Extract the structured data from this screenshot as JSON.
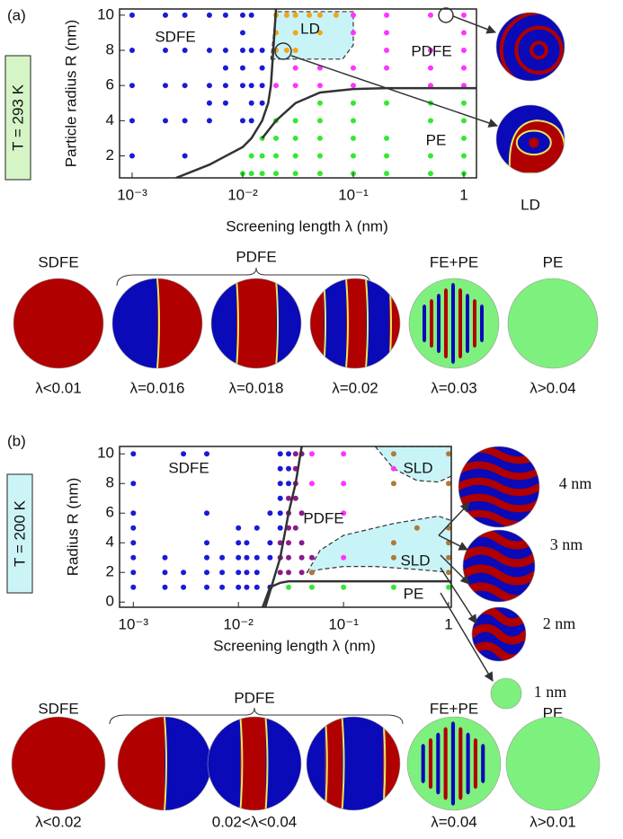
{
  "chart_data": [
    {
      "type": "scatter",
      "xscale": "log",
      "xlabel": "Screening length λ (nm)",
      "ylabel": "Particle radius R (nm)",
      "xlim": [
        0.00077,
        1.3
      ],
      "ylim": [
        0.75,
        10.35
      ],
      "xticks": [
        {
          "value": 0.001,
          "label": "10⁻³"
        },
        {
          "value": 0.01,
          "label": "10⁻²"
        },
        {
          "value": 0.1,
          "label": "10⁻¹"
        },
        1
      ],
      "yticks": [
        2,
        4,
        6,
        8,
        10
      ],
      "annotations": [
        "SDFE",
        "LD",
        "PDFE",
        "PE"
      ],
      "series": [
        {
          "style": "area",
          "color": "#c8f4f8",
          "x": [
            0.018,
            0.08,
            0.1,
            0.1,
            0.02
          ],
          "values": [
            7.5,
            7.5,
            8.3,
            10.2,
            10.2
          ]
        },
        {
          "style": "points",
          "color": "#1a1ad6",
          "x": [
            0.001,
            0.001,
            0.001,
            0.001,
            0.001,
            0.002,
            0.002,
            0.002,
            0.002,
            0.003,
            0.003,
            0.003,
            0.003,
            0.003,
            0.005,
            0.005,
            0.005,
            0.005,
            0.005,
            0.007,
            0.007,
            0.007,
            0.007,
            0.007,
            0.01,
            0.01,
            0.01,
            0.01,
            0.01,
            0.01,
            0.012,
            0.012,
            0.012,
            0.012,
            0.012,
            0.015,
            0.015,
            0.015,
            0.015
          ],
          "values": [
            2,
            4,
            6,
            8,
            10,
            4,
            6,
            8,
            10,
            2,
            4,
            6,
            8,
            10,
            4,
            5,
            6,
            8,
            10,
            5,
            6,
            7,
            8,
            10,
            4,
            6,
            7,
            8,
            9,
            10,
            4,
            5,
            6,
            8,
            10,
            5,
            6,
            7,
            8
          ]
        },
        {
          "style": "points",
          "color": "#33e833",
          "x": [
            0.01,
            0.012,
            0.012,
            0.015,
            0.015,
            0.015,
            0.02,
            0.02,
            0.02,
            0.02,
            0.03,
            0.03,
            0.03,
            0.03,
            0.05,
            0.05,
            0.05,
            0.05,
            0.05,
            0.1,
            0.1,
            0.1,
            0.1,
            0.1,
            0.2,
            0.2,
            0.2,
            0.2,
            0.5,
            0.5,
            0.5,
            0.5,
            1,
            1,
            1,
            1,
            1
          ],
          "values": [
            1,
            1,
            2,
            1,
            2,
            3,
            1,
            2,
            3,
            4,
            1,
            2,
            3,
            4,
            1,
            2,
            3,
            4,
            5,
            1,
            2,
            3,
            4,
            5,
            1,
            2,
            3,
            5,
            1,
            2,
            4,
            5,
            1,
            2,
            3,
            4,
            5
          ]
        },
        {
          "style": "points",
          "color": "#ff33ff",
          "x": [
            0.02,
            0.03,
            0.03,
            0.05,
            0.05,
            0.1,
            0.1,
            0.1,
            0.1,
            0.2,
            0.2,
            0.2,
            0.2,
            0.5,
            0.5,
            0.5,
            0.5,
            1,
            1,
            1,
            1,
            1
          ],
          "values": [
            6,
            6,
            7,
            6,
            7,
            6,
            7,
            9,
            10,
            7,
            8,
            9,
            10,
            6,
            7,
            8,
            10,
            6,
            7,
            8,
            9,
            10
          ]
        },
        {
          "style": "points",
          "color": "#f2a516",
          "x": [
            0.02,
            0.02,
            0.02,
            0.025,
            0.025,
            0.03,
            0.03,
            0.03,
            0.04,
            0.05,
            0.05,
            0.07
          ],
          "values": [
            8,
            9,
            10,
            8,
            10,
            8,
            9,
            10,
            10,
            9,
            10,
            10
          ]
        },
        {
          "style": "line",
          "color": "#333333",
          "x": [
            0.0025,
            0.005,
            0.01,
            0.012,
            0.015,
            0.017,
            0.018,
            0.02
          ],
          "values": [
            0.75,
            1.5,
            2.5,
            3,
            4,
            5,
            6,
            10.35
          ]
        },
        {
          "style": "line",
          "color": "#333333",
          "x": [
            0.015,
            0.02,
            0.03,
            0.05,
            0.1,
            0.2,
            1.3
          ],
          "values": [
            3,
            4,
            5,
            5.6,
            5.8,
            5.85,
            5.85
          ]
        }
      ]
    },
    {
      "type": "scatter",
      "xscale": "log",
      "xlabel": "Screening length λ (nm)",
      "ylabel": "Radius R (nm)",
      "xlim": [
        0.00074,
        1.06
      ],
      "ylim": [
        -0.35,
        10.5
      ],
      "xticks": [
        {
          "value": 0.001,
          "label": "10⁻³"
        },
        {
          "value": 0.01,
          "label": "10⁻²"
        },
        {
          "value": 0.1,
          "label": "10⁻¹"
        },
        1
      ],
      "yticks": [
        0,
        2,
        4,
        6,
        8,
        10
      ],
      "annotations": [
        "SDFE",
        "SLD",
        "PDFE",
        "SLD",
        "PE"
      ],
      "series": [
        {
          "style": "area",
          "color": "#c8f4f8",
          "x": [
            0.2,
            0.3,
            0.5,
            0.8,
            1.06,
            1.06
          ],
          "values": [
            10.5,
            9,
            8.2,
            8.1,
            8.5,
            10.5
          ]
        },
        {
          "style": "area",
          "color": "#c8f4f8",
          "x": [
            0.045,
            0.06,
            0.1,
            0.3,
            0.8,
            1.06,
            1.06,
            0.5,
            0.2,
            0.1,
            0.06
          ],
          "values": [
            2,
            3.5,
            4.5,
            5.3,
            5.8,
            5.5,
            2,
            2.2,
            2.4,
            2.4,
            2.2
          ]
        },
        {
          "style": "points",
          "color": "#1a1ad6",
          "x": [
            0.001,
            0.001,
            0.001,
            0.001,
            0.001,
            0.001,
            0.001,
            0.001,
            0.002,
            0.002,
            0.002,
            0.003,
            0.003,
            0.003,
            0.005,
            0.005,
            0.005,
            0.005,
            0.005,
            0.005,
            0.007,
            0.007,
            0.007,
            0.01,
            0.01,
            0.01,
            0.01,
            0.01,
            0.012,
            0.012,
            0.012,
            0.012,
            0.015,
            0.015,
            0.015,
            0.015,
            0.02,
            0.02,
            0.02,
            0.02,
            0.025,
            0.025,
            0.025,
            0.025,
            0.025,
            0.025,
            0.025,
            0.03,
            0.03,
            0.03
          ],
          "values": [
            1,
            2,
            3,
            4,
            5,
            6,
            8,
            10,
            1,
            2,
            3,
            1,
            2,
            10,
            1,
            2,
            3,
            4,
            6,
            10,
            1,
            2,
            3,
            1,
            2,
            3,
            4,
            5,
            1,
            2,
            3,
            4,
            1,
            2,
            3,
            5,
            1,
            3,
            4,
            6,
            3,
            5,
            6,
            7,
            8,
            9,
            10,
            8,
            9,
            10
          ]
        },
        {
          "style": "points",
          "color": "#8b1a8b",
          "x": [
            0.025,
            0.025,
            0.025,
            0.03,
            0.03,
            0.03,
            0.03,
            0.03,
            0.03,
            0.035,
            0.035,
            0.035,
            0.035,
            0.035,
            0.04,
            0.04,
            0.04,
            0.04,
            0.04,
            0.05,
            0.05
          ],
          "values": [
            2,
            3,
            4,
            2,
            3,
            4,
            5,
            6,
            7,
            5,
            7,
            8,
            9,
            10,
            2,
            3,
            4,
            6,
            10,
            2,
            3
          ]
        },
        {
          "style": "points",
          "color": "#ff33ff",
          "x": [
            0.05,
            0.05,
            0.1,
            0.1,
            0.1,
            0.1,
            0.3
          ],
          "values": [
            8,
            10,
            3,
            6,
            8,
            10,
            9
          ]
        },
        {
          "style": "points",
          "color": "#33e833",
          "x": [
            0.03,
            0.05,
            0.1,
            0.3,
            1
          ],
          "values": [
            1,
            1,
            1,
            1,
            1
          ]
        },
        {
          "style": "points",
          "color": "#b07838",
          "x": [
            0.05,
            0.3,
            0.3,
            0.3,
            0.3,
            0.5,
            1,
            1,
            1,
            1,
            1,
            1
          ],
          "values": [
            2,
            3,
            4,
            8,
            10,
            5,
            2,
            3,
            4,
            5,
            8,
            10
          ]
        },
        {
          "style": "line",
          "color": "#333333",
          "x": [
            0.018,
            0.025,
            0.03,
            0.035,
            0.04
          ],
          "values": [
            -0.35,
            3,
            6,
            8,
            10.5
          ]
        },
        {
          "style": "line",
          "color": "#333333",
          "x": [
            0.017,
            0.02,
            0.025,
            0.03,
            0.05,
            0.1,
            1,
            1.06
          ],
          "values": [
            -0.35,
            1,
            1.3,
            1.4,
            1.4,
            1.4,
            1.4,
            1.4
          ]
        }
      ]
    }
  ],
  "figure": {
    "panels": [
      {
        "label": "(a)",
        "condition": "T = 293 K",
        "insets": [
          "LD"
        ],
        "phases": [
          "SDFE",
          "PDFE",
          "FE+PE",
          "PE"
        ],
        "lambdas": [
          "λ<0.01",
          "λ=0.016",
          "λ=0.018",
          "λ=0.02",
          "λ=0.03",
          "λ>0.04"
        ]
      },
      {
        "label": "(b)",
        "condition": "T = 200 K",
        "insets": [
          "4 nm",
          "3 nm",
          "2 nm",
          "1 nm"
        ],
        "phases": [
          "SDFE",
          "PDFE",
          "FE+PE",
          "PE"
        ],
        "lambdas": [
          "λ<0.02",
          "0.02<λ<0.04",
          "λ=0.04",
          "λ>0.01"
        ]
      }
    ]
  }
}
